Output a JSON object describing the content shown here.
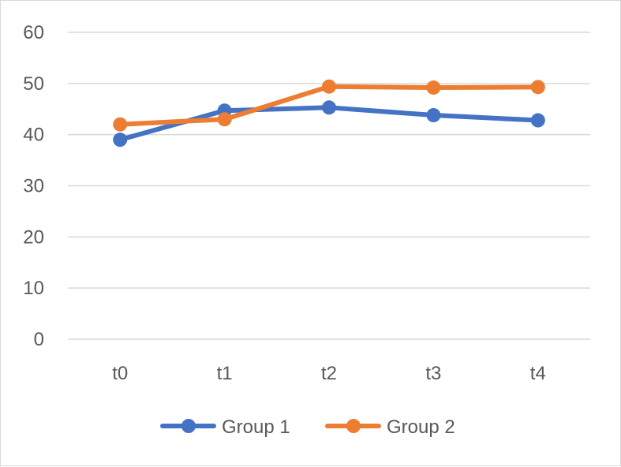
{
  "chart_data": {
    "type": "line",
    "categories": [
      "t0",
      "t1",
      "t2",
      "t3",
      "t4"
    ],
    "series": [
      {
        "name": "Group 1",
        "values": [
          39,
          44.7,
          45.3,
          43.8,
          42.8
        ],
        "color": "#4472C4"
      },
      {
        "name": "Group 2",
        "values": [
          42,
          43,
          49.4,
          49.2,
          49.3
        ],
        "color": "#ED7D31"
      }
    ],
    "ylim": [
      0,
      60
    ],
    "yticks": [
      0,
      10,
      20,
      30,
      40,
      50,
      60
    ],
    "grid": true,
    "legend": "bottom",
    "gridColor": "#d9d9d9",
    "textColor": "#595959"
  }
}
